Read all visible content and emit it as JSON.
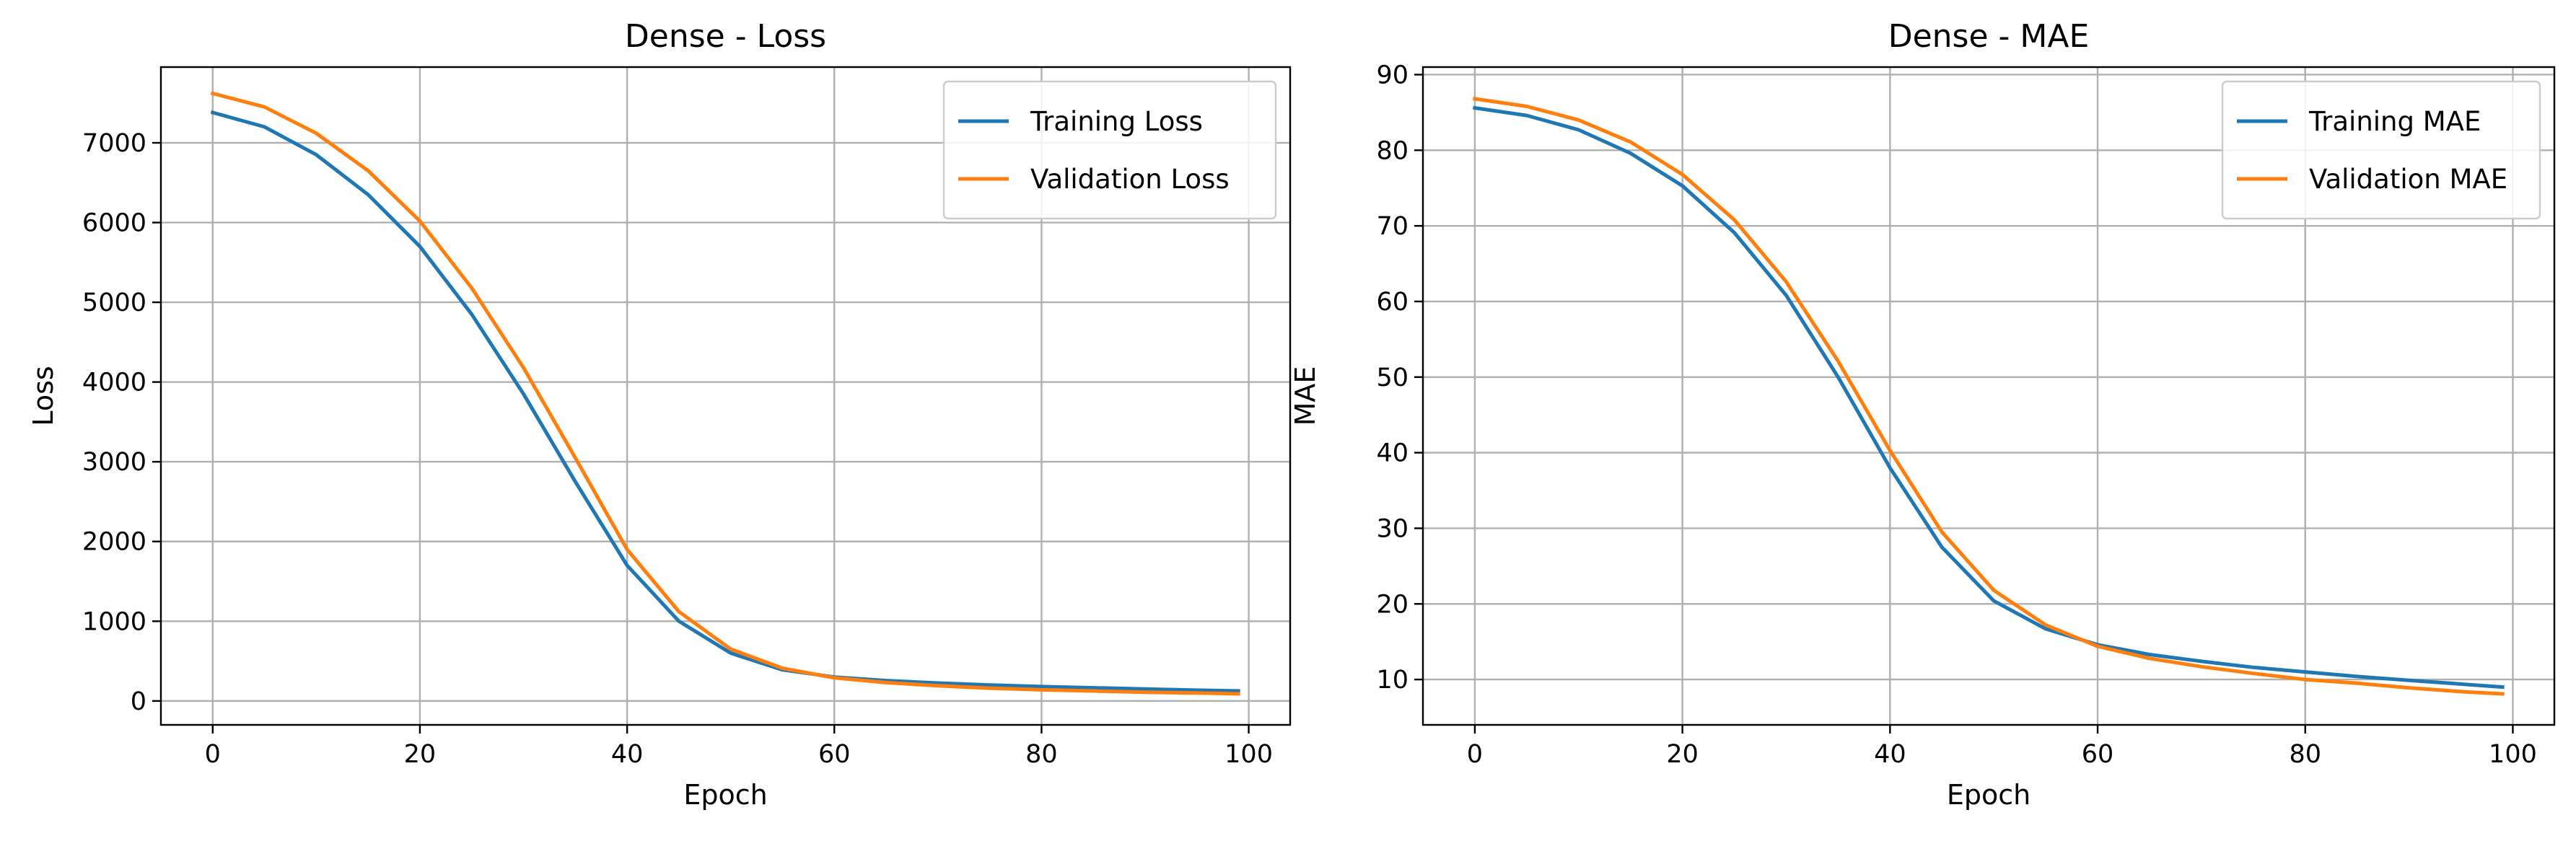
{
  "chart_data": [
    {
      "type": "line",
      "title": "Dense - Loss",
      "xlabel": "Epoch",
      "ylabel": "Loss",
      "xlim": [
        -5,
        104
      ],
      "ylim": [
        -300,
        7950
      ],
      "xticks": [
        0,
        20,
        40,
        60,
        80,
        100
      ],
      "yticks": [
        0,
        1000,
        2000,
        3000,
        4000,
        5000,
        6000,
        7000
      ],
      "grid": true,
      "legend": "top-right",
      "x": [
        0,
        5,
        10,
        15,
        20,
        25,
        30,
        35,
        40,
        45,
        50,
        55,
        60,
        65,
        70,
        75,
        80,
        85,
        90,
        95,
        99
      ],
      "series": [
        {
          "name": "Training Loss",
          "color": "#1f77b4",
          "values": [
            7380,
            7200,
            6850,
            6350,
            5700,
            4850,
            3850,
            2750,
            1700,
            1000,
            600,
            390,
            300,
            255,
            225,
            200,
            180,
            165,
            150,
            135,
            125
          ]
        },
        {
          "name": "Validation Loss",
          "color": "#ff7f0e",
          "values": [
            7620,
            7450,
            7120,
            6650,
            6020,
            5180,
            4180,
            3050,
            1900,
            1120,
            650,
            410,
            290,
            230,
            190,
            160,
            140,
            125,
            110,
            100,
            90
          ]
        }
      ]
    },
    {
      "type": "line",
      "title": "Dense - MAE",
      "xlabel": "Epoch",
      "ylabel": "MAE",
      "xlim": [
        -5,
        104
      ],
      "ylim": [
        4,
        91
      ],
      "xticks": [
        0,
        20,
        40,
        60,
        80,
        100
      ],
      "yticks": [
        10,
        20,
        30,
        40,
        50,
        60,
        70,
        80,
        90
      ],
      "grid": true,
      "legend": "top-right",
      "x": [
        0,
        5,
        10,
        15,
        20,
        25,
        30,
        35,
        40,
        45,
        50,
        55,
        60,
        65,
        70,
        75,
        80,
        85,
        90,
        95,
        99
      ],
      "series": [
        {
          "name": "Training MAE",
          "color": "#1f77b4",
          "values": [
            85.6,
            84.6,
            82.7,
            79.6,
            75.3,
            69.1,
            60.8,
            50.0,
            38.0,
            27.5,
            20.4,
            16.7,
            14.6,
            13.3,
            12.4,
            11.6,
            11.0,
            10.4,
            9.9,
            9.4,
            9.0
          ]
        },
        {
          "name": "Validation MAE",
          "color": "#ff7f0e",
          "values": [
            86.8,
            85.8,
            84.0,
            81.1,
            76.8,
            70.8,
            62.6,
            52.1,
            40.3,
            29.5,
            21.8,
            17.2,
            14.4,
            12.8,
            11.7,
            10.8,
            10.0,
            9.5,
            8.9,
            8.4,
            8.1
          ]
        }
      ]
    }
  ]
}
